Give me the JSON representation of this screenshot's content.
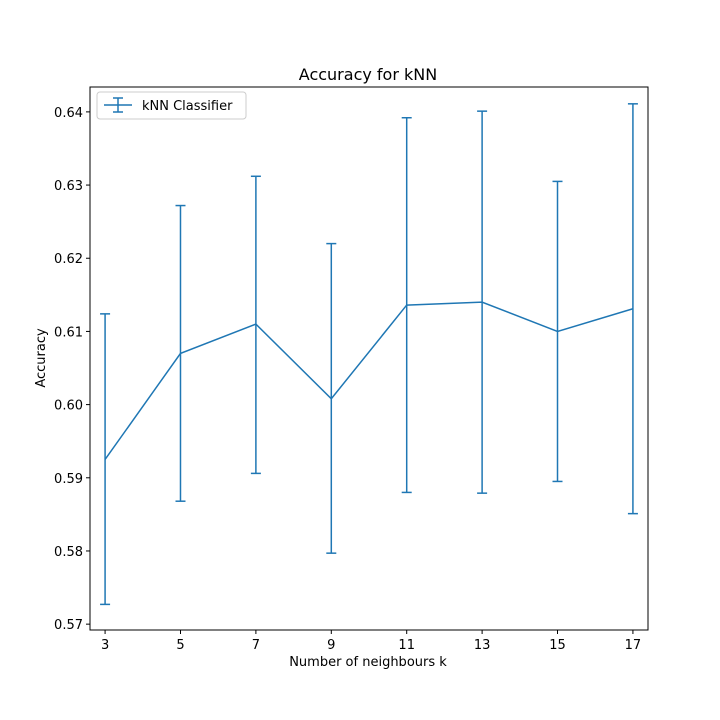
{
  "chart_data": {
    "type": "line",
    "title": "Accuracy for kNN",
    "xlabel": "Number of neighbours k",
    "ylabel": "Accuracy",
    "x": [
      3,
      5,
      7,
      9,
      11,
      13,
      15,
      17
    ],
    "xticks": [
      "3",
      "5",
      "7",
      "9",
      "11",
      "13",
      "15",
      "17"
    ],
    "xlim": [
      2.6,
      17.4
    ],
    "ylim": [
      0.5692,
      0.6434
    ],
    "yticks": [
      0.57,
      0.58,
      0.59,
      0.6,
      0.61,
      0.62,
      0.63,
      0.64
    ],
    "ytick_labels": [
      "0.57",
      "0.58",
      "0.59",
      "0.60",
      "0.61",
      "0.62",
      "0.63",
      "0.64"
    ],
    "grid": false,
    "legend": "upper-left",
    "series": [
      {
        "name": "kNN Classifier",
        "color": "#1f77b4",
        "values": [
          0.5925,
          0.607,
          0.611,
          0.6008,
          0.6136,
          0.614,
          0.61,
          0.6131
        ],
        "err_low": [
          0.5727,
          0.5868,
          0.5906,
          0.5797,
          0.588,
          0.5879,
          0.5895,
          0.5851
        ],
        "err_high": [
          0.6124,
          0.6272,
          0.6312,
          0.622,
          0.6392,
          0.6401,
          0.6305,
          0.6411
        ]
      }
    ]
  }
}
